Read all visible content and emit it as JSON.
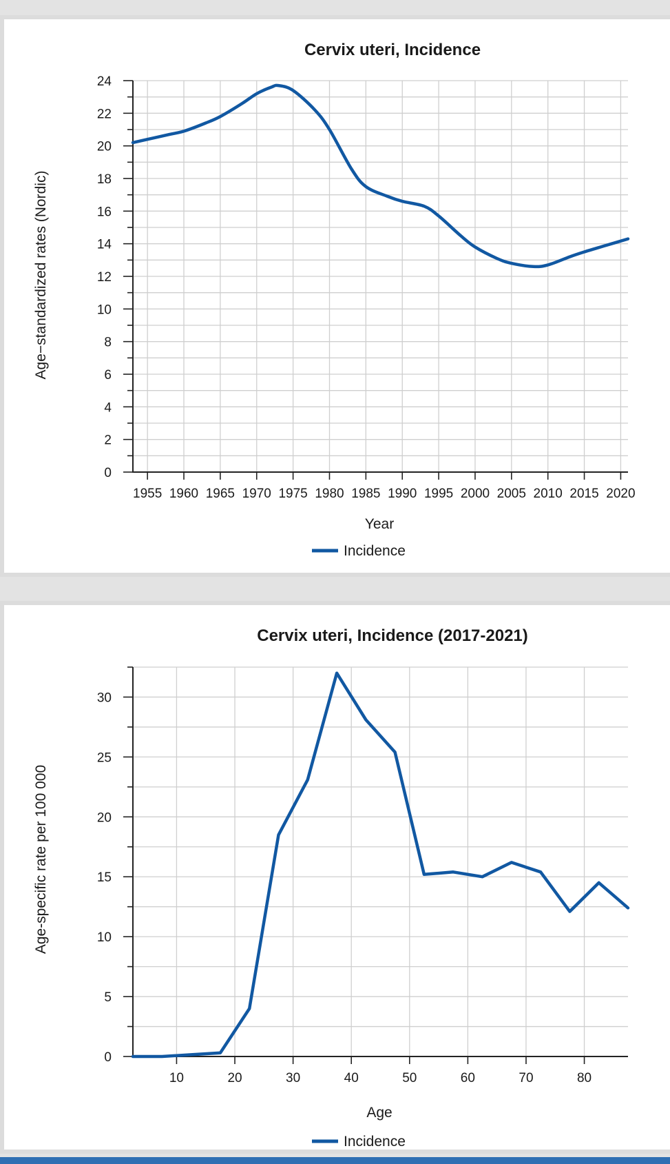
{
  "chart_data": [
    {
      "type": "line",
      "title": "Cervix uteri, Incidence",
      "xlabel": "Year",
      "ylabel": "Age−standardized rates (Nordic)",
      "xlim": [
        1953,
        2021
      ],
      "ylim": [
        0,
        24
      ],
      "x_ticks": [
        "1955",
        "1960",
        "1965",
        "1970",
        "1975",
        "1980",
        "1985",
        "1990",
        "1995",
        "2000",
        "2005",
        "2010",
        "2015",
        "2020"
      ],
      "y_ticks": [
        "0",
        "2",
        "4",
        "6",
        "8",
        "10",
        "12",
        "14",
        "16",
        "18",
        "20",
        "22",
        "24"
      ],
      "grid": true,
      "legend": "bottom",
      "series": [
        {
          "name": "Incidence",
          "color": "#1158a2",
          "x": [
            1953,
            1955,
            1958,
            1960,
            1963,
            1965,
            1968,
            1970,
            1972,
            1973,
            1975,
            1978,
            1980,
            1983,
            1985,
            1988,
            1990,
            1993,
            1995,
            1998,
            2000,
            2003,
            2005,
            2008,
            2010,
            2013,
            2015,
            2018,
            2021
          ],
          "y": [
            20.2,
            20.4,
            20.7,
            20.9,
            21.4,
            21.8,
            22.6,
            23.2,
            23.6,
            23.7,
            23.4,
            22.2,
            21.0,
            18.6,
            17.5,
            16.9,
            16.6,
            16.3,
            15.7,
            14.5,
            13.8,
            13.1,
            12.8,
            12.6,
            12.7,
            13.2,
            13.5,
            13.9,
            14.3
          ]
        }
      ]
    },
    {
      "type": "line",
      "title": "Cervix uteri, Incidence (2017-2021)",
      "xlabel": "Age",
      "ylabel": "Age-specific rate per 100 000",
      "xlim": [
        2.5,
        87.5
      ],
      "ylim": [
        0,
        32.5
      ],
      "x_ticks": [
        "10",
        "20",
        "30",
        "40",
        "50",
        "60",
        "70",
        "80"
      ],
      "y_ticks": [
        "0",
        "5",
        "10",
        "15",
        "20",
        "25",
        "30"
      ],
      "grid": true,
      "legend": "bottom",
      "series": [
        {
          "name": "Incidence",
          "color": "#1158a2",
          "x": [
            2.5,
            7.5,
            12.5,
            17.5,
            22.5,
            27.5,
            32.5,
            37.5,
            42.5,
            47.5,
            52.5,
            57.5,
            62.5,
            67.5,
            72.5,
            77.5,
            82.5,
            87.5
          ],
          "y": [
            0.0,
            0.0,
            0.15,
            0.3,
            4.0,
            18.5,
            23.1,
            32.0,
            28.1,
            25.4,
            15.2,
            15.4,
            15.0,
            16.2,
            15.4,
            12.1,
            14.5,
            12.4
          ]
        }
      ]
    }
  ]
}
